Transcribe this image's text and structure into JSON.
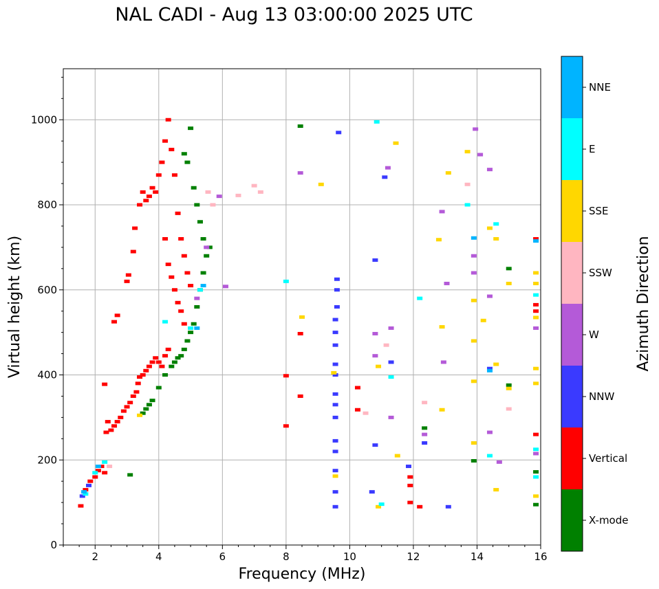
{
  "chart_data": {
    "type": "scatter",
    "title": "NAL CADI - Aug 13 03:00:00 2025 UTC",
    "xlabel": "Frequency (MHz)",
    "ylabel": "Virtual height (km)",
    "xlim": [
      1,
      16
    ],
    "ylim": [
      0,
      1120
    ],
    "xticks": [
      2,
      4,
      6,
      8,
      10,
      12,
      14,
      16
    ],
    "yticks": [
      0,
      200,
      400,
      600,
      800,
      1000
    ],
    "grid": true,
    "colorbar": {
      "label": "Azimuth Direction",
      "categories": [
        {
          "name": "X-mode",
          "color": "#008000"
        },
        {
          "name": "Vertical",
          "color": "#ff0000"
        },
        {
          "name": "NNW",
          "color": "#3a3aff"
        },
        {
          "name": "W",
          "color": "#b45ad8"
        },
        {
          "name": "SSW",
          "color": "#ffb6c1"
        },
        {
          "name": "SSE",
          "color": "#ffd700"
        },
        {
          "name": "E",
          "color": "#00ffff"
        },
        {
          "name": "NNE",
          "color": "#00b4ff"
        }
      ]
    },
    "series": [
      {
        "name": "Vertical",
        "points": [
          [
            1.55,
            92
          ],
          [
            1.7,
            130
          ],
          [
            1.85,
            150
          ],
          [
            2.0,
            160
          ],
          [
            2.1,
            175
          ],
          [
            2.2,
            185
          ],
          [
            2.3,
            170
          ],
          [
            2.35,
            265
          ],
          [
            2.4,
            290
          ],
          [
            2.5,
            270
          ],
          [
            2.6,
            280
          ],
          [
            2.7,
            290
          ],
          [
            2.8,
            300
          ],
          [
            2.9,
            315
          ],
          [
            3.0,
            325
          ],
          [
            3.1,
            335
          ],
          [
            3.2,
            350
          ],
          [
            3.3,
            360
          ],
          [
            3.35,
            380
          ],
          [
            3.4,
            395
          ],
          [
            3.5,
            400
          ],
          [
            3.6,
            410
          ],
          [
            3.7,
            420
          ],
          [
            3.8,
            430
          ],
          [
            3.9,
            440
          ],
          [
            4.0,
            430
          ],
          [
            4.1,
            420
          ],
          [
            4.2,
            445
          ],
          [
            4.3,
            460
          ],
          [
            3.0,
            620
          ],
          [
            3.05,
            635
          ],
          [
            2.7,
            540
          ],
          [
            2.6,
            525
          ],
          [
            3.2,
            690
          ],
          [
            3.25,
            745
          ],
          [
            3.4,
            800
          ],
          [
            3.5,
            830
          ],
          [
            3.6,
            810
          ],
          [
            3.7,
            820
          ],
          [
            3.8,
            840
          ],
          [
            3.9,
            830
          ],
          [
            4.0,
            870
          ],
          [
            4.1,
            900
          ],
          [
            4.2,
            950
          ],
          [
            4.3,
            1000
          ],
          [
            4.4,
            930
          ],
          [
            4.5,
            870
          ],
          [
            4.6,
            780
          ],
          [
            4.7,
            720
          ],
          [
            4.8,
            680
          ],
          [
            4.9,
            640
          ],
          [
            5.0,
            610
          ],
          [
            4.2,
            720
          ],
          [
            4.3,
            660
          ],
          [
            4.4,
            630
          ],
          [
            4.5,
            600
          ],
          [
            4.6,
            570
          ],
          [
            4.7,
            550
          ],
          [
            4.8,
            520
          ],
          [
            2.3,
            378
          ],
          [
            8.0,
            280
          ],
          [
            8.0,
            398
          ],
          [
            8.45,
            350
          ],
          [
            8.45,
            497
          ],
          [
            10.25,
            370
          ],
          [
            10.25,
            318
          ],
          [
            12.2,
            90
          ],
          [
            11.9,
            100
          ],
          [
            11.9,
            140
          ],
          [
            11.9,
            160
          ],
          [
            15.85,
            720
          ],
          [
            15.85,
            565
          ],
          [
            15.85,
            550
          ],
          [
            15.85,
            260
          ]
        ]
      },
      {
        "name": "X-mode",
        "points": [
          [
            3.1,
            165
          ],
          [
            3.5,
            310
          ],
          [
            3.6,
            320
          ],
          [
            3.7,
            330
          ],
          [
            3.8,
            340
          ],
          [
            4.0,
            370
          ],
          [
            4.2,
            400
          ],
          [
            4.4,
            420
          ],
          [
            4.5,
            430
          ],
          [
            4.6,
            440
          ],
          [
            4.7,
            445
          ],
          [
            4.8,
            460
          ],
          [
            4.9,
            480
          ],
          [
            5.0,
            500
          ],
          [
            5.1,
            520
          ],
          [
            5.2,
            560
          ],
          [
            5.3,
            600
          ],
          [
            5.4,
            640
          ],
          [
            5.5,
            680
          ],
          [
            5.6,
            700
          ],
          [
            4.8,
            920
          ],
          [
            4.9,
            900
          ],
          [
            5.0,
            980
          ],
          [
            5.1,
            840
          ],
          [
            5.2,
            800
          ],
          [
            5.3,
            760
          ],
          [
            5.4,
            720
          ],
          [
            8.45,
            985
          ],
          [
            13.9,
            198
          ],
          [
            15.0,
            650
          ],
          [
            15.0,
            376
          ],
          [
            15.85,
            172
          ],
          [
            15.85,
            95
          ],
          [
            12.35,
            275
          ]
        ]
      },
      {
        "name": "NNW",
        "points": [
          [
            1.6,
            115
          ],
          [
            1.8,
            140
          ],
          [
            9.55,
            90
          ],
          [
            9.55,
            125
          ],
          [
            9.55,
            175
          ],
          [
            9.55,
            220
          ],
          [
            9.55,
            245
          ],
          [
            9.55,
            300
          ],
          [
            9.55,
            330
          ],
          [
            9.55,
            355
          ],
          [
            9.55,
            400
          ],
          [
            9.55,
            425
          ],
          [
            9.55,
            470
          ],
          [
            9.55,
            500
          ],
          [
            9.55,
            530
          ],
          [
            9.6,
            560
          ],
          [
            9.6,
            600
          ],
          [
            9.6,
            625
          ],
          [
            9.65,
            970
          ],
          [
            10.7,
            125
          ],
          [
            10.8,
            235
          ],
          [
            10.8,
            670
          ],
          [
            11.1,
            865
          ],
          [
            11.3,
            430
          ],
          [
            11.85,
            185
          ],
          [
            13.1,
            90
          ],
          [
            12.35,
            240
          ],
          [
            14.4,
            415
          ]
        ]
      },
      {
        "name": "W",
        "points": [
          [
            5.2,
            580
          ],
          [
            5.5,
            700
          ],
          [
            5.9,
            820
          ],
          [
            6.1,
            608
          ],
          [
            8.45,
            875
          ],
          [
            10.8,
            445
          ],
          [
            10.8,
            497
          ],
          [
            11.2,
            887
          ],
          [
            11.3,
            510
          ],
          [
            11.3,
            300
          ],
          [
            12.35,
            260
          ],
          [
            12.9,
            784
          ],
          [
            12.95,
            430
          ],
          [
            13.05,
            615
          ],
          [
            13.9,
            680
          ],
          [
            13.9,
            640
          ],
          [
            13.95,
            978
          ],
          [
            14.1,
            918
          ],
          [
            14.4,
            883
          ],
          [
            14.4,
            585
          ],
          [
            14.4,
            265
          ],
          [
            14.7,
            195
          ],
          [
            15.85,
            510
          ],
          [
            15.85,
            215
          ]
        ]
      },
      {
        "name": "SSW",
        "points": [
          [
            2.45,
            185
          ],
          [
            5.55,
            830
          ],
          [
            5.7,
            800
          ],
          [
            6.5,
            822
          ],
          [
            7.0,
            845
          ],
          [
            7.2,
            830
          ],
          [
            10.5,
            310
          ],
          [
            11.15,
            470
          ],
          [
            12.35,
            335
          ],
          [
            13.7,
            848
          ],
          [
            15.0,
            320
          ]
        ]
      },
      {
        "name": "SSE",
        "points": [
          [
            3.4,
            305
          ],
          [
            8.5,
            536
          ],
          [
            9.1,
            848
          ],
          [
            9.55,
            162
          ],
          [
            9.5,
            405
          ],
          [
            10.9,
            90
          ],
          [
            10.9,
            420
          ],
          [
            11.5,
            210
          ],
          [
            11.45,
            945
          ],
          [
            12.8,
            718
          ],
          [
            12.9,
            513
          ],
          [
            12.9,
            318
          ],
          [
            13.1,
            875
          ],
          [
            13.7,
            925
          ],
          [
            13.9,
            575
          ],
          [
            13.9,
            480
          ],
          [
            13.9,
            385
          ],
          [
            13.9,
            240
          ],
          [
            14.2,
            528
          ],
          [
            14.4,
            745
          ],
          [
            14.6,
            720
          ],
          [
            14.6,
            425
          ],
          [
            14.6,
            130
          ],
          [
            15.0,
            615
          ],
          [
            15.0,
            368
          ],
          [
            15.85,
            640
          ],
          [
            15.85,
            615
          ],
          [
            15.85,
            535
          ],
          [
            15.85,
            415
          ],
          [
            15.85,
            380
          ],
          [
            15.85,
            115
          ]
        ]
      },
      {
        "name": "E",
        "points": [
          [
            1.7,
            120
          ],
          [
            2.0,
            170
          ],
          [
            2.3,
            195
          ],
          [
            4.2,
            525
          ],
          [
            5.0,
            510
          ],
          [
            5.3,
            600
          ],
          [
            8.0,
            620
          ],
          [
            10.85,
            995
          ],
          [
            11.0,
            96
          ],
          [
            11.3,
            395
          ],
          [
            12.2,
            580
          ],
          [
            13.7,
            800
          ],
          [
            14.4,
            210
          ],
          [
            14.6,
            755
          ],
          [
            15.85,
            588
          ],
          [
            15.85,
            225
          ],
          [
            15.85,
            160
          ]
        ]
      },
      {
        "name": "NNE",
        "points": [
          [
            1.65,
            125
          ],
          [
            2.1,
            185
          ],
          [
            5.2,
            510
          ],
          [
            5.4,
            610
          ],
          [
            13.9,
            722
          ],
          [
            14.4,
            410
          ],
          [
            15.85,
            715
          ]
        ]
      }
    ]
  }
}
